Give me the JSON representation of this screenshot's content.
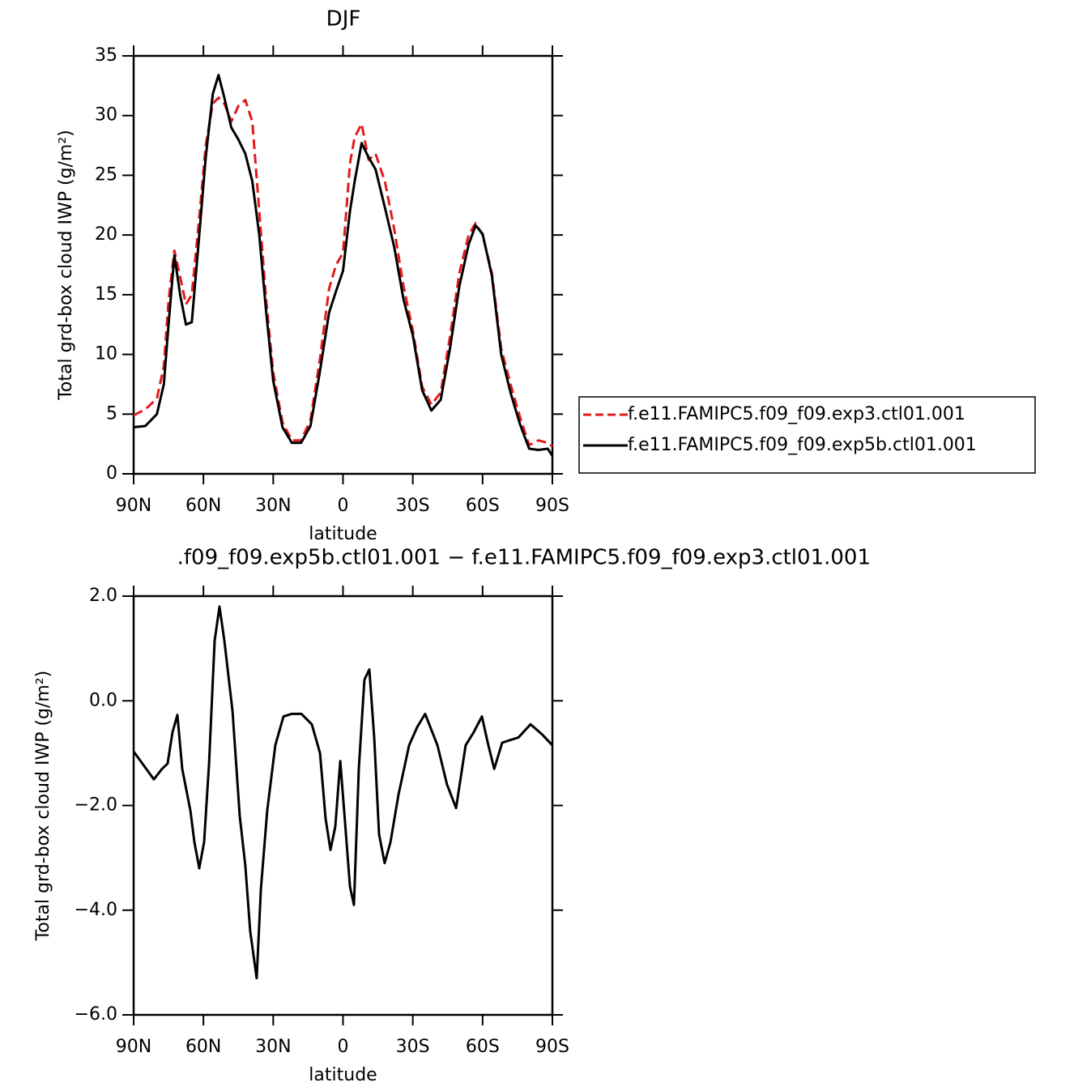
{
  "chart_data": [
    {
      "type": "line",
      "title": "DJF",
      "x_label": "latitude",
      "y_label": "Total grd-box cloud IWP (g/m²)",
      "xlim": [
        90,
        -90
      ],
      "xticks": [
        {
          "value": 90,
          "label": "90N"
        },
        {
          "value": 60,
          "label": "60N"
        },
        {
          "value": 30,
          "label": "30N"
        },
        0,
        {
          "value": -30,
          "label": "30S"
        },
        {
          "value": -60,
          "label": "60S"
        },
        {
          "value": -90,
          "label": "90S"
        }
      ],
      "ylim": [
        0,
        35
      ],
      "yticks": [
        0,
        5,
        10,
        15,
        20,
        25,
        30,
        35
      ],
      "legend": "right",
      "x": [
        90,
        85,
        80,
        77,
        75,
        72.5,
        70,
        67.5,
        65,
        62,
        59,
        56,
        53.5,
        51,
        48,
        45,
        42,
        39,
        36,
        33,
        30,
        26,
        22,
        18,
        14,
        10,
        6,
        3,
        0,
        -3,
        -5,
        -8,
        -11,
        -14,
        -18,
        -22,
        -26,
        -30,
        -34,
        -38,
        -42,
        -46,
        -50,
        -54,
        -57,
        -60,
        -64,
        -68,
        -72,
        -76,
        -80,
        -84,
        -88,
        -90
      ],
      "series": [
        {
          "name": "f.e11.FAMIPC5.f09_f09.exp3.ctl01.001",
          "color": "#e41a1c",
          "style": "dashed",
          "values": [
            4.9,
            5.4,
            6.3,
            9,
            14.5,
            18.7,
            16.5,
            14.2,
            15,
            21,
            27.5,
            31,
            31.5,
            31,
            29.5,
            30.8,
            31.3,
            29.5,
            22,
            14.5,
            8.5,
            4.3,
            2.8,
            2.8,
            4.5,
            9.5,
            15.5,
            17.5,
            18.5,
            26,
            28.2,
            29.3,
            26.3,
            26.8,
            24.5,
            20.5,
            15.7,
            12,
            7.3,
            5.8,
            6.8,
            11.5,
            16.8,
            20,
            21,
            20,
            16.8,
            10.5,
            7.5,
            4.8,
            2.4,
            2.8,
            2.6,
            2.3
          ]
        },
        {
          "name": "f.e11.FAMIPC5.f09_f09.exp5b.ctl01.001",
          "color": "#000000",
          "style": "solid",
          "values": [
            3.9,
            4.0,
            5.0,
            7.5,
            12.5,
            18.3,
            15,
            12.5,
            12.7,
            19.5,
            26.5,
            31.8,
            33.4,
            31.5,
            29.0,
            28.0,
            26.8,
            24.5,
            20,
            13.5,
            7.8,
            3.9,
            2.6,
            2.6,
            4.0,
            8.5,
            13.5,
            15.3,
            17,
            22,
            24.5,
            27.7,
            26.5,
            25.5,
            22.3,
            19,
            14.6,
            11.6,
            7,
            5.3,
            6.2,
            10.5,
            15.7,
            19.2,
            20.8,
            20.1,
            16.6,
            10,
            6.8,
            4.2,
            2.1,
            2.0,
            2.1,
            1.5
          ]
        }
      ]
    },
    {
      "type": "line",
      "title": ".f09_f09.exp5b.ctl01.001 − f.e11.FAMIPC5.f09_f09.exp3.ctl01.001",
      "x_label": "latitude",
      "y_label": "Total grd-box cloud IWP (g/m²)",
      "xlim": [
        90,
        -90
      ],
      "xticks": [
        {
          "value": 90,
          "label": "90N"
        },
        {
          "value": 60,
          "label": "60N"
        },
        {
          "value": 30,
          "label": "30N"
        },
        0,
        {
          "value": -30,
          "label": "30S"
        },
        {
          "value": -60,
          "label": "60S"
        },
        {
          "value": -90,
          "label": "90S"
        }
      ],
      "ylim": [
        -6,
        2
      ],
      "yticks": [
        {
          "value": -6,
          "label": "−6.0"
        },
        {
          "value": -4,
          "label": "−4.0"
        },
        {
          "value": -2,
          "label": "−2.0"
        },
        {
          "value": 0,
          "label": "0.0"
        },
        {
          "value": 2,
          "label": "2.0"
        }
      ],
      "x": [
        90,
        81.3,
        77.8,
        75.4,
        73.3,
        71.2,
        69.1,
        65.6,
        63.9,
        61.8,
        59.7,
        57.6,
        55.2,
        53.1,
        51,
        47.5,
        44.4,
        42,
        39.9,
        37.1,
        35.3,
        32.6,
        29.1,
        25.6,
        22.1,
        17.9,
        13.4,
        9.9,
        7.5,
        5.4,
        3.3,
        1.2,
        -0.5,
        -3,
        -4.7,
        -6.8,
        -9.2,
        -11.3,
        -13.4,
        -15.5,
        -17.9,
        -20.4,
        -23.8,
        -28.4,
        -31.9,
        -35.3,
        -40.6,
        -44.7,
        -48.6,
        -52.7,
        -56.2,
        -59.7,
        -62.2,
        -65,
        -68.4,
        -71.9,
        -75.4,
        -80.6,
        -85.8,
        -90
      ],
      "series": [
        {
          "color": "#000000",
          "style": "solid",
          "values": [
            -0.97,
            -1.5,
            -1.3,
            -1.2,
            -0.6,
            -0.27,
            -1.3,
            -2.1,
            -2.7,
            -3.2,
            -2.7,
            -1.2,
            1.15,
            1.8,
            1.15,
            -0.2,
            -2.2,
            -3.15,
            -4.4,
            -5.3,
            -3.6,
            -2.1,
            -0.85,
            -0.3,
            -0.25,
            -0.25,
            -0.45,
            -1.0,
            -2.25,
            -2.85,
            -2.4,
            -1.15,
            -2.1,
            -3.55,
            -3.9,
            -1.3,
            0.4,
            0.6,
            -0.7,
            -2.55,
            -3.1,
            -2.7,
            -1.8,
            -0.85,
            -0.5,
            -0.25,
            -0.85,
            -1.6,
            -2.05,
            -0.85,
            -0.6,
            -0.3,
            -0.8,
            -1.3,
            -0.8,
            -0.75,
            -0.7,
            -0.45,
            -0.65,
            -0.85
          ]
        }
      ]
    }
  ]
}
